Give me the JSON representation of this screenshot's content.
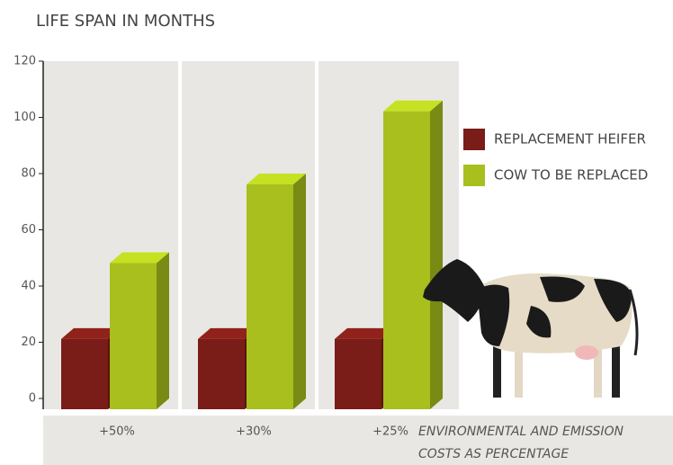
{
  "chart_data": {
    "type": "bar3d",
    "title": "LIFE SPAN IN MONTHS",
    "categories": [
      "+50%",
      "+30%",
      "+25%"
    ],
    "x_label": [
      "ENVIRONMENTAL AND EMISSION",
      "COSTS AS PERCENTAGE"
    ],
    "series": [
      {
        "name": "REPLACEMENT HEIFER",
        "color": "#7a1c17",
        "values": [
          25,
          25,
          25
        ]
      },
      {
        "name": "COW TO BE REPLACED",
        "color": "#a8bf1d",
        "values": [
          52,
          80,
          106
        ]
      }
    ],
    "ylim": [
      0,
      120
    ],
    "yticks": [
      0,
      20,
      40,
      60,
      80,
      100,
      120
    ]
  }
}
